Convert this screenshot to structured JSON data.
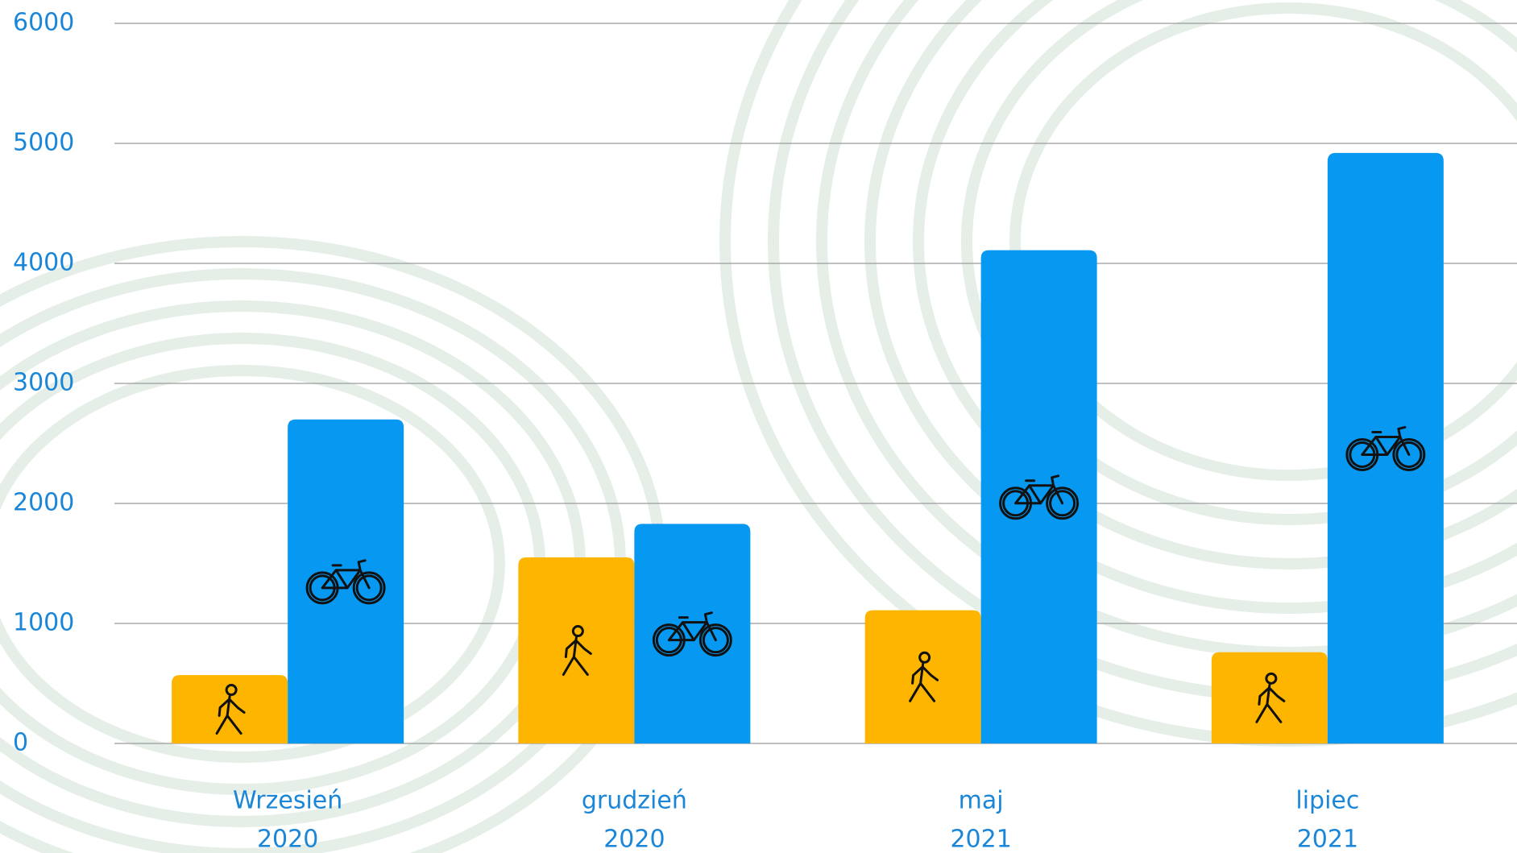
{
  "chart_data": {
    "type": "bar",
    "categories": [
      [
        "Wrzesień",
        "2020"
      ],
      [
        "grudzień",
        "2020"
      ],
      [
        "maj",
        "2021"
      ],
      [
        "lipiec",
        "2021"
      ]
    ],
    "series": [
      {
        "color": "#fdb500",
        "values": [
          570,
          1550,
          1110,
          760
        ]
      },
      {
        "color": "#0799f2",
        "values": [
          2700,
          1830,
          4110,
          4920
        ]
      }
    ],
    "ylim": [
      0,
      6000
    ],
    "yticks": [
      0,
      1000,
      2000,
      3000,
      4000,
      5000,
      6000
    ],
    "grid": true
  }
}
